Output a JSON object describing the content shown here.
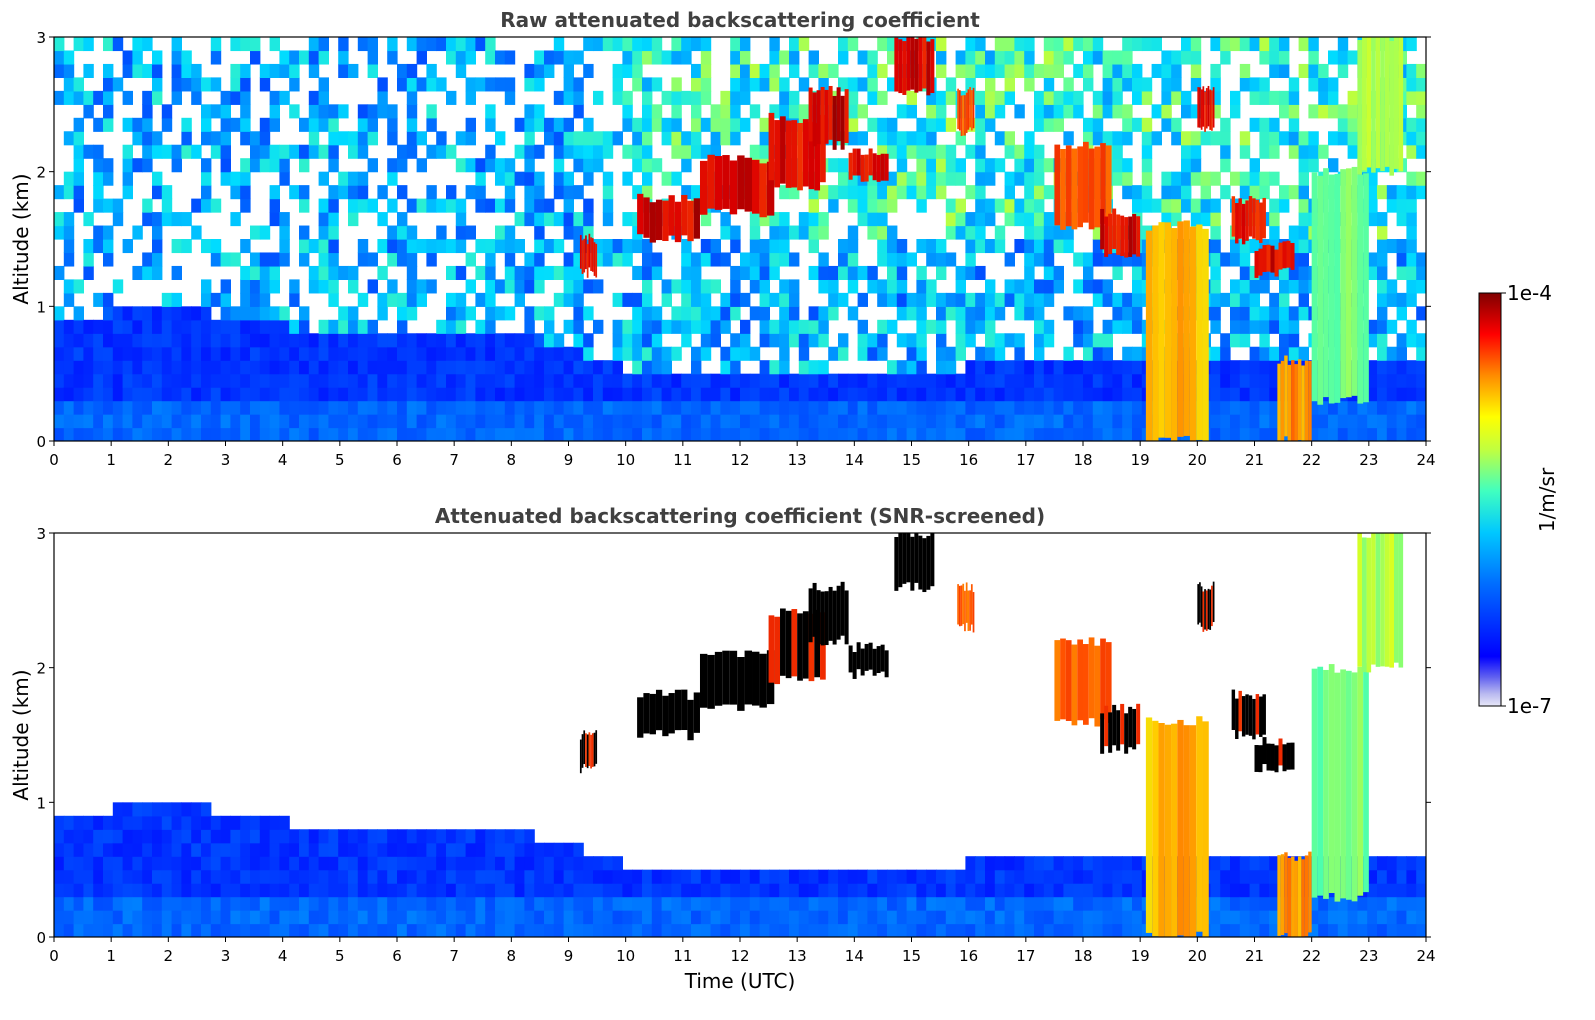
{
  "chart_data": [
    {
      "type": "heatmap",
      "title": "Raw attenuated backscattering coefficient",
      "xlabel": "",
      "ylabel": "Altitude (km)",
      "xlim": [
        0,
        24
      ],
      "ylim": [
        0,
        3
      ],
      "xticks": [
        "0",
        "1",
        "2",
        "3",
        "4",
        "5",
        "6",
        "7",
        "8",
        "9",
        "10",
        "11",
        "12",
        "13",
        "14",
        "15",
        "16",
        "17",
        "18",
        "19",
        "20",
        "21",
        "22",
        "23",
        "24"
      ],
      "yticks": [
        "0",
        "1",
        "2",
        "3"
      ],
      "screened": false,
      "cloud_layers": [
        {
          "t": [
            9.2,
            9.5
          ],
          "z": [
            1.25,
            1.5
          ],
          "level": 0.95
        },
        {
          "t": [
            10.2,
            11.3
          ],
          "z": [
            1.5,
            1.8
          ],
          "level": 0.98
        },
        {
          "t": [
            11.3,
            12.6
          ],
          "z": [
            1.7,
            2.1
          ],
          "level": 0.97
        },
        {
          "t": [
            12.5,
            13.5
          ],
          "z": [
            1.9,
            2.4
          ],
          "level": 0.97
        },
        {
          "t": [
            13.2,
            13.9
          ],
          "z": [
            2.2,
            2.6
          ],
          "level": 0.98
        },
        {
          "t": [
            13.9,
            14.6
          ],
          "z": [
            1.95,
            2.15
          ],
          "level": 0.98
        },
        {
          "t": [
            14.7,
            15.4
          ],
          "z": [
            2.6,
            3.0
          ],
          "level": 0.98
        },
        {
          "t": [
            15.8,
            16.1
          ],
          "z": [
            2.3,
            2.6
          ],
          "level": 0.9
        },
        {
          "t": [
            17.5,
            18.5
          ],
          "z": [
            1.6,
            2.2
          ],
          "level": 0.9
        },
        {
          "t": [
            18.3,
            19.0
          ],
          "z": [
            1.4,
            1.7
          ],
          "level": 0.97
        },
        {
          "t": [
            19.1,
            20.2
          ],
          "z": [
            0.0,
            1.6
          ],
          "level": 0.82
        },
        {
          "t": [
            20.0,
            20.3
          ],
          "z": [
            2.3,
            2.6
          ],
          "level": 0.97
        },
        {
          "t": [
            20.6,
            21.2
          ],
          "z": [
            1.5,
            1.8
          ],
          "level": 0.95
        },
        {
          "t": [
            21.0,
            21.7
          ],
          "z": [
            1.25,
            1.45
          ],
          "level": 0.97
        },
        {
          "t": [
            21.4,
            22.0
          ],
          "z": [
            0.0,
            0.6
          ],
          "level": 0.85
        },
        {
          "t": [
            22.0,
            23.0
          ],
          "z": [
            0.3,
            2.0
          ],
          "level": 0.62
        },
        {
          "t": [
            22.8,
            23.6
          ],
          "z": [
            2.0,
            3.0
          ],
          "level": 0.68
        }
      ]
    },
    {
      "type": "heatmap",
      "title": "Attenuated backscattering coefficient (SNR-screened)",
      "xlabel": "Time (UTC)",
      "ylabel": "Altitude (km)",
      "xlim": [
        0,
        24
      ],
      "ylim": [
        0,
        3
      ],
      "xticks": [
        "0",
        "1",
        "2",
        "3",
        "4",
        "5",
        "6",
        "7",
        "8",
        "9",
        "10",
        "11",
        "12",
        "13",
        "14",
        "15",
        "16",
        "17",
        "18",
        "19",
        "20",
        "21",
        "22",
        "23",
        "24"
      ],
      "yticks": [
        "0",
        "1",
        "2",
        "3"
      ],
      "screened": true,
      "boundary_layer_top_km": [
        {
          "t": 0,
          "z": 0.9
        },
        {
          "t": 2,
          "z": 1.0
        },
        {
          "t": 5,
          "z": 0.78
        },
        {
          "t": 8,
          "z": 0.8
        },
        {
          "t": 9.2,
          "z": 0.65
        },
        {
          "t": 10,
          "z": 0.55
        },
        {
          "t": 12,
          "z": 0.45
        },
        {
          "t": 14,
          "z": 0.45
        },
        {
          "t": 17,
          "z": 0.6
        },
        {
          "t": 20,
          "z": 0.55
        },
        {
          "t": 23,
          "z": 0.6
        },
        {
          "t": 24,
          "z": 0.55
        }
      ]
    }
  ],
  "colorbar": {
    "label": "1/m/sr",
    "max_label": "1e-4",
    "min_label": "1e-7",
    "colormap": "jet"
  }
}
